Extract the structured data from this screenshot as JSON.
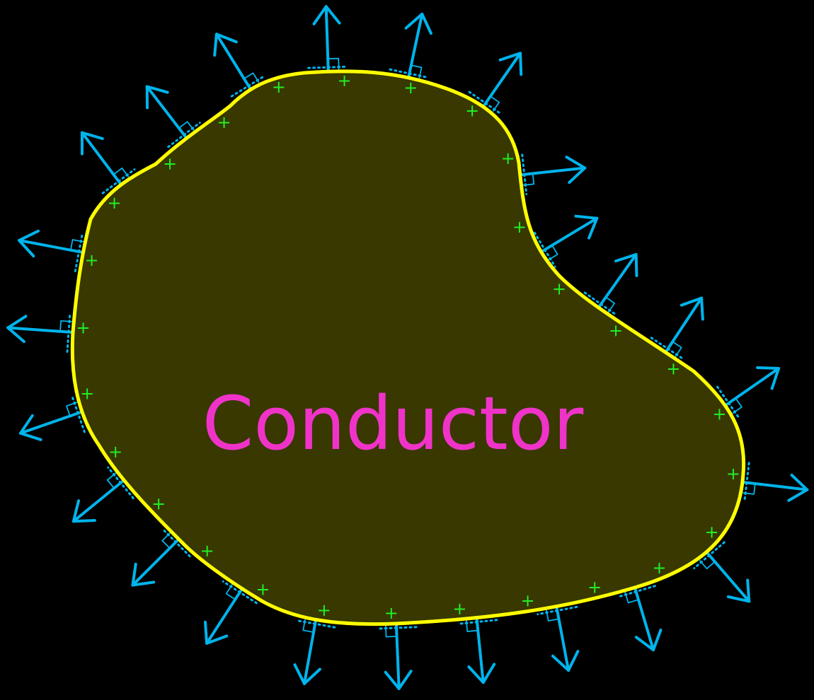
{
  "diagram": {
    "label": "Conductor",
    "surface_charge_symbol": "+",
    "field_arrow_count": 24,
    "charge_count": 28
  },
  "colors": {
    "background": "#000000",
    "conductor_fill": "#383800",
    "conductor_outline": "#ffff00",
    "field_arrows": "#00b4ec",
    "charges": "#22ee22",
    "label": "#f033c8"
  }
}
